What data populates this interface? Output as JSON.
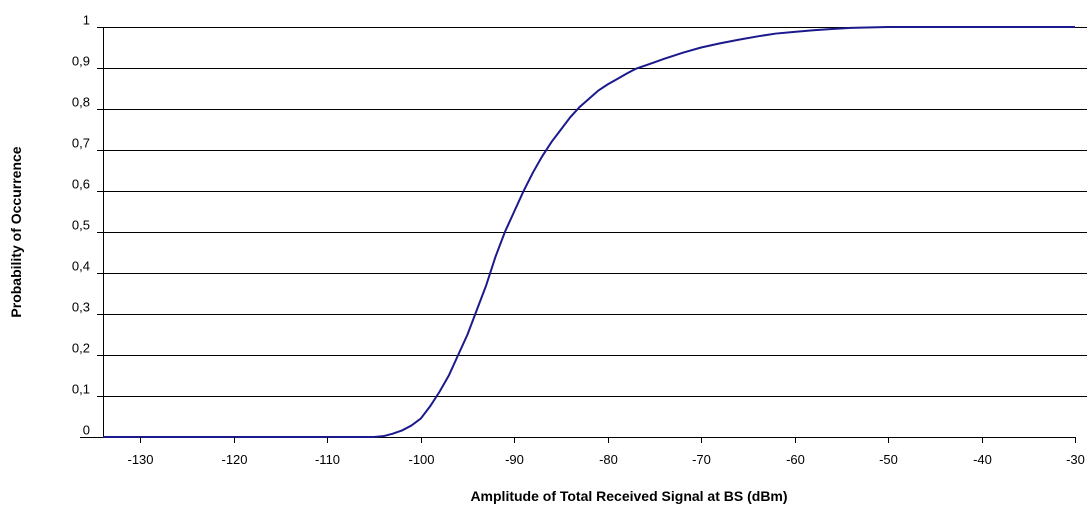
{
  "chart_data": {
    "type": "line",
    "title": "",
    "xlabel": "Amplitude of Total Received Signal at BS (dBm)",
    "ylabel": "Probability of Occurrence",
    "xlim": [
      -134,
      -30
    ],
    "ylim": [
      0,
      1
    ],
    "x_ticks": [
      -130,
      -120,
      -110,
      -100,
      -90,
      -80,
      -70,
      -60,
      -50,
      -40,
      -30
    ],
    "x_tick_labels": [
      "-130",
      "-120",
      "-110",
      "-100",
      "-90",
      "-80",
      "-70",
      "-60",
      "-50",
      "-40",
      "-30"
    ],
    "y_ticks": [
      0,
      0.1,
      0.2,
      0.3,
      0.4,
      0.5,
      0.6,
      0.7,
      0.8,
      0.9,
      1
    ],
    "y_tick_labels": [
      "0",
      "0,1",
      "0,2",
      "0,3",
      "0,4",
      "0,5",
      "0,6",
      "0,7",
      "0,8",
      "0,9",
      "1"
    ],
    "grid": "horizontal",
    "legend": "none",
    "series_color": "#1a1a8c",
    "series": [
      {
        "x": [
          -134,
          -110,
          -105,
          -104,
          -103,
          -102,
          -101,
          -100,
          -99,
          -98,
          -97,
          -96,
          -95,
          -94,
          -93,
          -92,
          -91,
          -90,
          -89,
          -88,
          -87,
          -86,
          -85,
          -84,
          -83,
          -82,
          -81,
          -80,
          -79,
          -78,
          -77,
          -76,
          -75,
          -74,
          -72,
          -70,
          -68,
          -66,
          -64,
          -62,
          -60,
          -58,
          -56,
          -54,
          -50,
          -45,
          -40,
          -35,
          -30
        ],
        "y": [
          0,
          0,
          0,
          0.002,
          0.008,
          0.016,
          0.028,
          0.045,
          0.075,
          0.11,
          0.15,
          0.2,
          0.25,
          0.31,
          0.37,
          0.44,
          0.5,
          0.55,
          0.6,
          0.645,
          0.685,
          0.72,
          0.75,
          0.78,
          0.805,
          0.825,
          0.845,
          0.86,
          0.873,
          0.886,
          0.898,
          0.906,
          0.914,
          0.922,
          0.937,
          0.95,
          0.96,
          0.969,
          0.977,
          0.984,
          0.988,
          0.992,
          0.995,
          0.998,
          1,
          1,
          1,
          1,
          1
        ]
      }
    ]
  }
}
